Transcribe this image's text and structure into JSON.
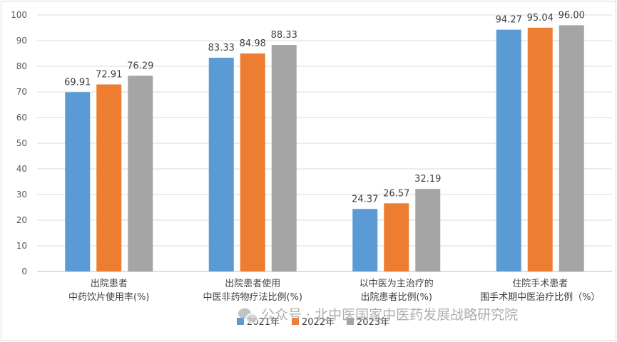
{
  "chart_data": {
    "type": "bar",
    "categories": [
      [
        "出院患者",
        "中药饮片使用率(%)"
      ],
      [
        "出院患者使用",
        "中医非药物疗法比例(%)"
      ],
      [
        "以中医为主治疗的",
        "出院患者比例(%)"
      ],
      [
        "住院手术患者",
        "围手术期中医治疗比例（%）"
      ]
    ],
    "series": [
      {
        "name": "2021年",
        "color": "#5b9bd5",
        "values": [
          69.91,
          83.33,
          24.37,
          94.27
        ]
      },
      {
        "name": "2022年",
        "color": "#ed7d31",
        "values": [
          72.91,
          84.98,
          26.57,
          95.04
        ]
      },
      {
        "name": "2023年",
        "color": "#a5a5a5",
        "values": [
          76.29,
          88.33,
          32.19,
          96.0
        ]
      }
    ],
    "data_labels": [
      [
        "69.91",
        "83.33",
        "24.37",
        "94.27"
      ],
      [
        "72.91",
        "84.98",
        "26.57",
        "95.04"
      ],
      [
        "76.29",
        "88.33",
        "32.19",
        "96.00"
      ]
    ],
    "ylim": [
      0,
      100
    ],
    "yticks": [
      0,
      10,
      20,
      30,
      40,
      50,
      60,
      70,
      80,
      90,
      100
    ],
    "grid": true,
    "legend_position": "bottom-center"
  },
  "watermark": {
    "icon": "wechat-icon",
    "text": "公众号 · 北中医国家中医药发展战略研究院"
  }
}
